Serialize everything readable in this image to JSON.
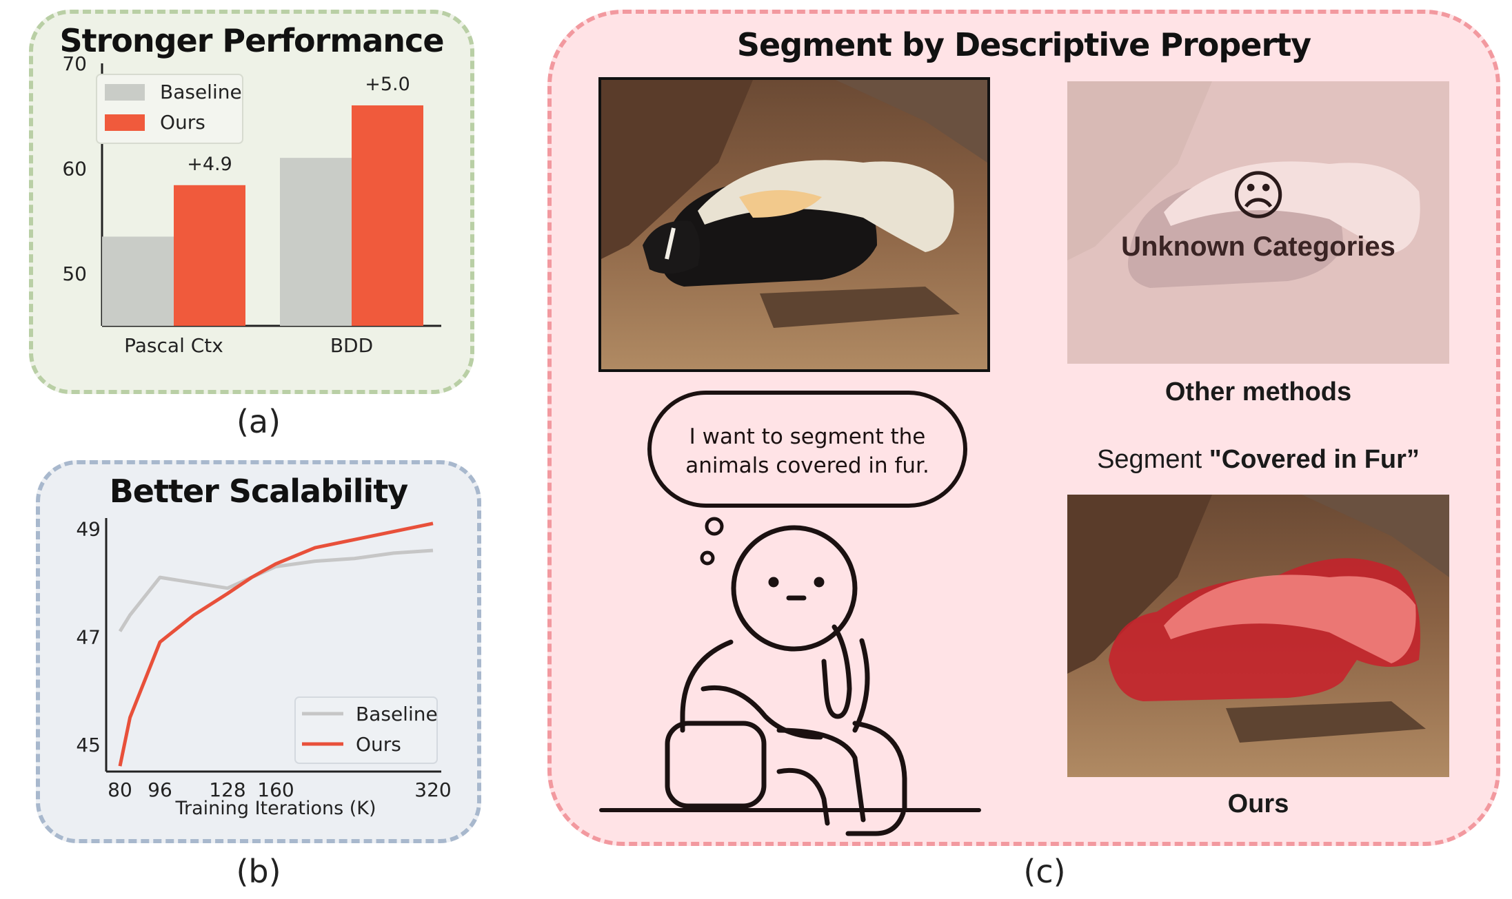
{
  "panel_a": {
    "title": "Stronger Performance",
    "caption": "(a)",
    "chart_data": {
      "type": "bar",
      "categories": [
        "Pascal Ctx",
        "BDD"
      ],
      "series": [
        {
          "name": "Baseline",
          "values": [
            53.5,
            61.0
          ],
          "color": "#c9ccc7"
        },
        {
          "name": "Ours",
          "values": [
            58.4,
            66.0
          ],
          "color": "#f05a3c"
        }
      ],
      "annotations": [
        "+4.9",
        "+5.0"
      ],
      "ylim": [
        45,
        70
      ],
      "yticks": [
        "50",
        "60",
        "70"
      ],
      "ytick_values": [
        50,
        60,
        70
      ],
      "legend": "top-left"
    }
  },
  "panel_b": {
    "title": "Better Scalability",
    "caption": "(b)",
    "chart_data": {
      "type": "line",
      "xlabel": "Training Iterations (K)",
      "x": [
        80,
        96,
        128,
        160,
        320
      ],
      "xtick_labels": [
        "80",
        "96",
        "128",
        "160",
        "320"
      ],
      "series": [
        {
          "name": "Baseline",
          "color": "#c6c6c6",
          "x": [
            80,
            84,
            96,
            128,
            160,
            200,
            240,
            280,
            320
          ],
          "y": [
            47.1,
            47.4,
            48.1,
            47.9,
            48.3,
            48.4,
            48.45,
            48.55,
            48.6
          ]
        },
        {
          "name": "Ours",
          "color": "#e8503a",
          "x": [
            80,
            84,
            90,
            96,
            112,
            128,
            144,
            160,
            200,
            240,
            280,
            320
          ],
          "y": [
            44.6,
            45.5,
            46.2,
            46.9,
            47.4,
            47.8,
            48.1,
            48.35,
            48.65,
            48.8,
            48.95,
            49.1
          ]
        }
      ],
      "ylim": [
        44.5,
        49.2
      ],
      "yticks": [
        "45",
        "47",
        "49"
      ],
      "ytick_values": [
        45,
        47,
        49
      ],
      "legend": "bottom-right"
    }
  },
  "panel_c": {
    "title": "Segment by Descriptive Property",
    "caption": "(c)",
    "thought_bubble_line1": "I want to segment the",
    "thought_bubble_line2": "animals covered in fur.",
    "other_methods_overlay": "Unknown Categories",
    "sad_face": "☹",
    "other_methods_label": "Other methods",
    "segment_prefix": "Segment ",
    "segment_query": "\"Covered in Fur”",
    "ours_label": "Ours"
  }
}
